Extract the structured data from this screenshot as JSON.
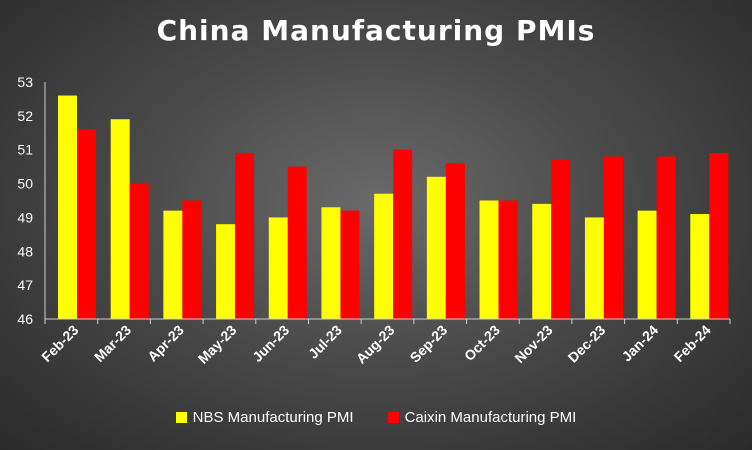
{
  "chart_data": {
    "type": "bar",
    "title": "China Manufacturing PMIs",
    "categories": [
      "Feb-23",
      "Mar-23",
      "Apr-23",
      "May-23",
      "Jun-23",
      "Jul-23",
      "Aug-23",
      "Sep-23",
      "Oct-23",
      "Nov-23",
      "Dec-23",
      "Jan-24",
      "Feb-24"
    ],
    "ylim": [
      46,
      53
    ],
    "yticks": [
      "46",
      "47",
      "48",
      "49",
      "50",
      "51",
      "52",
      "53"
    ],
    "grid": false,
    "legend_position": "bottom",
    "series": [
      {
        "name": "NBS Manufacturing PMI",
        "color": "#ffff00",
        "values": [
          52.6,
          51.9,
          49.2,
          48.8,
          49.0,
          49.3,
          49.7,
          50.2,
          49.5,
          49.4,
          49.0,
          49.2,
          49.1
        ]
      },
      {
        "name": "Caixin Manufacturing PMI",
        "color": "#ff0000",
        "values": [
          51.6,
          50.0,
          49.5,
          50.9,
          50.5,
          49.2,
          51.0,
          50.6,
          49.5,
          50.7,
          50.8,
          50.8,
          50.9
        ]
      }
    ]
  }
}
